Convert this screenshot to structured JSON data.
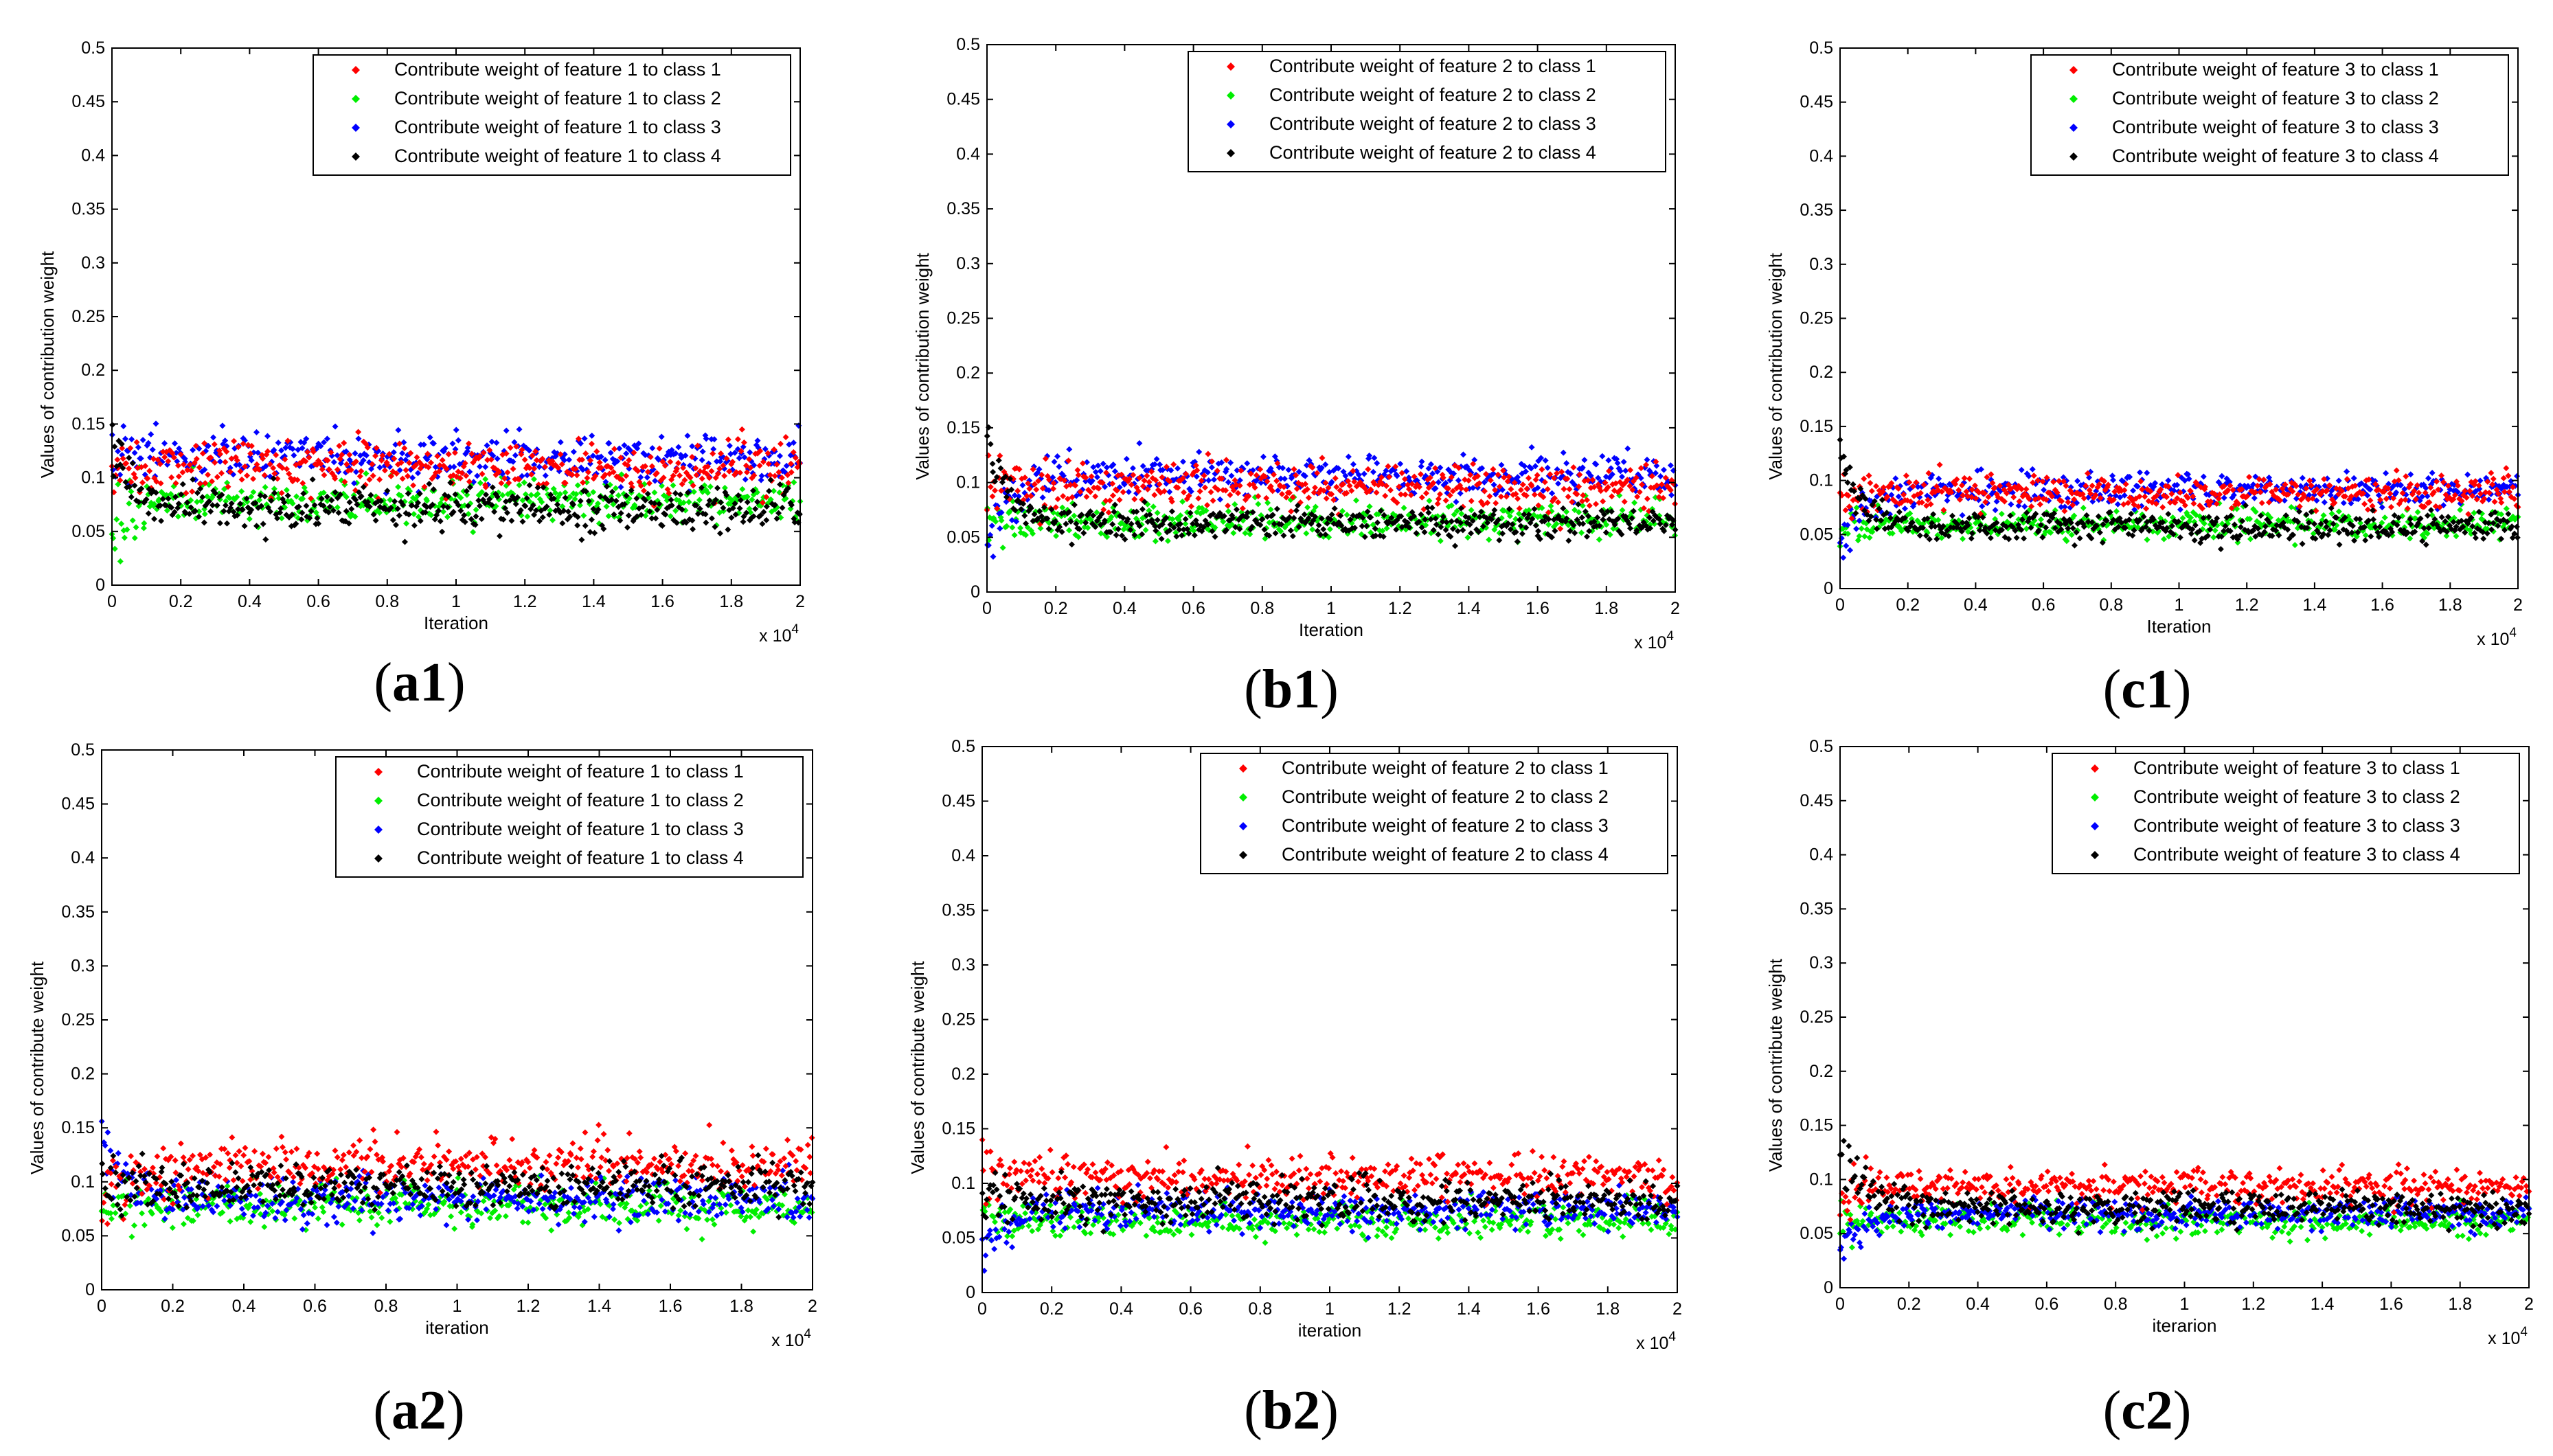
{
  "figure": {
    "panels_label_note": "six subplots arranged 3 columns x 2 rows"
  },
  "colors": {
    "class1": "#ff0000",
    "class2": "#00ee00",
    "class3": "#0000ff",
    "class4": "#000000"
  },
  "chart_data": [
    {
      "id": "a1",
      "type": "scatter",
      "panel_label": "a1",
      "xlabel": "Iteration",
      "ylabel": "Values of contribution weight",
      "x_exponent": "x 10",
      "x_exponent_power": "4",
      "xlim": [
        0,
        2
      ],
      "ylim": [
        0,
        0.5
      ],
      "xticks": [
        "0",
        "0.2",
        "0.4",
        "0.6",
        "0.8",
        "1",
        "1.2",
        "1.4",
        "1.6",
        "1.8",
        "2"
      ],
      "yticks": [
        "0",
        "0.05",
        "0.1",
        "0.15",
        "0.2",
        "0.25",
        "0.3",
        "0.35",
        "0.4",
        "0.45",
        "0.5"
      ],
      "legend_position": "top-right",
      "series": [
        {
          "name": "Contribute weight of feature 1 to class 1",
          "color_key": "class1",
          "start": 0.1,
          "mean": 0.11,
          "spread": 0.012,
          "seed": 11
        },
        {
          "name": "Contribute weight of feature 1 to class 2",
          "color_key": "class2",
          "start": 0.06,
          "mean": 0.078,
          "spread": 0.01,
          "seed": 12
        },
        {
          "name": "Contribute weight of feature 1 to class 3",
          "color_key": "class3",
          "start": 0.12,
          "mean": 0.118,
          "spread": 0.011,
          "seed": 13
        },
        {
          "name": "Contribute weight of feature 1 to class 4",
          "color_key": "class4",
          "start": 0.14,
          "mean": 0.072,
          "spread": 0.01,
          "seed": 14
        }
      ]
    },
    {
      "id": "b1",
      "type": "scatter",
      "panel_label": "b1",
      "xlabel": "Iteration",
      "ylabel": "Values of contribution weight",
      "x_exponent": "x 10",
      "x_exponent_power": "4",
      "xlim": [
        0,
        2
      ],
      "ylim": [
        0,
        0.5
      ],
      "xticks": [
        "0",
        "0.2",
        "0.4",
        "0.6",
        "0.8",
        "1",
        "1.2",
        "1.4",
        "1.6",
        "1.8",
        "2"
      ],
      "yticks": [
        "0",
        "0.05",
        "0.1",
        "0.15",
        "0.2",
        "0.25",
        "0.3",
        "0.35",
        "0.4",
        "0.45",
        "0.5"
      ],
      "legend_position": "top-right",
      "series": [
        {
          "name": "Contribute weight of feature 2 to class 1",
          "color_key": "class1",
          "start": 0.09,
          "mean": 0.097,
          "spread": 0.01,
          "seed": 21
        },
        {
          "name": "Contribute weight of feature 2 to class 2",
          "color_key": "class2",
          "start": 0.06,
          "mean": 0.066,
          "spread": 0.008,
          "seed": 22
        },
        {
          "name": "Contribute weight of feature 2 to class 3",
          "color_key": "class3",
          "start": 0.04,
          "mean": 0.106,
          "spread": 0.009,
          "seed": 23
        },
        {
          "name": "Contribute weight of feature 2 to class 4",
          "color_key": "class4",
          "start": 0.14,
          "mean": 0.063,
          "spread": 0.007,
          "seed": 24
        }
      ]
    },
    {
      "id": "c1",
      "type": "scatter",
      "panel_label": "c1",
      "xlabel": "Iteration",
      "ylabel": "Values of contribution weight",
      "x_exponent": "x 10",
      "x_exponent_power": "4",
      "xlim": [
        0,
        2
      ],
      "ylim": [
        0,
        0.5
      ],
      "xticks": [
        "0",
        "0.2",
        "0.4",
        "0.6",
        "0.8",
        "1",
        "1.2",
        "1.4",
        "1.6",
        "1.8",
        "2"
      ],
      "yticks": [
        "0",
        "0.05",
        "0.1",
        "0.15",
        "0.2",
        "0.25",
        "0.3",
        "0.35",
        "0.4",
        "0.45",
        "0.5"
      ],
      "legend_position": "top-right",
      "series": [
        {
          "name": "Contribute weight of feature 3 to class 1",
          "color_key": "class1",
          "start": 0.08,
          "mean": 0.088,
          "spread": 0.008,
          "seed": 31
        },
        {
          "name": "Contribute weight of feature 3 to class 2",
          "color_key": "class2",
          "start": 0.06,
          "mean": 0.06,
          "spread": 0.007,
          "seed": 32
        },
        {
          "name": "Contribute weight of feature 3 to class 3",
          "color_key": "class3",
          "start": 0.04,
          "mean": 0.092,
          "spread": 0.008,
          "seed": 33
        },
        {
          "name": "Contribute weight of feature 3 to class 4",
          "color_key": "class4",
          "start": 0.13,
          "mean": 0.057,
          "spread": 0.007,
          "seed": 34
        }
      ]
    },
    {
      "id": "a2",
      "type": "scatter",
      "panel_label": "a2",
      "xlabel": "iteration",
      "ylabel": "Values of contribute weight",
      "x_exponent": "x 10",
      "x_exponent_power": "4",
      "xlim": [
        0,
        2
      ],
      "ylim": [
        0,
        0.5
      ],
      "xticks": [
        "0",
        "0.2",
        "0.4",
        "0.6",
        "0.8",
        "1",
        "1.2",
        "1.4",
        "1.6",
        "1.8",
        "2"
      ],
      "yticks": [
        "0",
        "0.05",
        "0.1",
        "0.15",
        "0.2",
        "0.25",
        "0.3",
        "0.35",
        "0.4",
        "0.45",
        "0.5"
      ],
      "legend_position": "top-right",
      "series": [
        {
          "name": "Contribute weight of feature 1 to class 1",
          "color_key": "class1",
          "start": 0.06,
          "mean": 0.116,
          "spread": 0.011,
          "seed": 41
        },
        {
          "name": "Contribute weight of feature 1 to class 2",
          "color_key": "class2",
          "start": 0.08,
          "mean": 0.078,
          "spread": 0.01,
          "seed": 42
        },
        {
          "name": "Contribute weight of feature 1 to class 3",
          "color_key": "class3",
          "start": 0.14,
          "mean": 0.085,
          "spread": 0.01,
          "seed": 43
        },
        {
          "name": "Contribute weight of feature 1 to class 4",
          "color_key": "class4",
          "start": 0.1,
          "mean": 0.096,
          "spread": 0.01,
          "seed": 44
        }
      ]
    },
    {
      "id": "b2",
      "type": "scatter",
      "panel_label": "b2",
      "xlabel": "iteration",
      "ylabel": "Values of contribute weight",
      "x_exponent": "x 10",
      "x_exponent_power": "4",
      "xlim": [
        0,
        2
      ],
      "ylim": [
        0,
        0.5
      ],
      "xticks": [
        "0",
        "0.2",
        "0.4",
        "0.6",
        "0.8",
        "1",
        "1.2",
        "1.4",
        "1.6",
        "1.8",
        "2"
      ],
      "yticks": [
        "0",
        "0.05",
        "0.1",
        "0.15",
        "0.2",
        "0.25",
        "0.3",
        "0.35",
        "0.4",
        "0.45",
        "0.5"
      ],
      "legend_position": "top-right",
      "series": [
        {
          "name": "Contribute weight of feature 2 to class 1",
          "color_key": "class1",
          "start": 0.12,
          "mean": 0.106,
          "spread": 0.01,
          "seed": 51
        },
        {
          "name": "Contribute weight of feature 2 to class 2",
          "color_key": "class2",
          "start": 0.07,
          "mean": 0.066,
          "spread": 0.008,
          "seed": 52
        },
        {
          "name": "Contribute weight of feature 2 to class 3",
          "color_key": "class3",
          "start": 0.03,
          "mean": 0.076,
          "spread": 0.008,
          "seed": 53
        },
        {
          "name": "Contribute weight of feature 2 to class 4",
          "color_key": "class4",
          "start": 0.09,
          "mean": 0.084,
          "spread": 0.009,
          "seed": 54
        }
      ]
    },
    {
      "id": "c2",
      "type": "scatter",
      "panel_label": "c2",
      "xlabel": "iterarion",
      "ylabel": "Values of contribute weight",
      "x_exponent": "x 10",
      "x_exponent_power": "4",
      "xlim": [
        0,
        2
      ],
      "ylim": [
        0,
        0.5
      ],
      "xticks": [
        "0",
        "0.2",
        "0.4",
        "0.6",
        "0.8",
        "1",
        "1.2",
        "1.4",
        "1.6",
        "1.8",
        "2"
      ],
      "yticks": [
        "0",
        "0.05",
        "0.1",
        "0.15",
        "0.2",
        "0.25",
        "0.3",
        "0.35",
        "0.4",
        "0.45",
        "0.5"
      ],
      "legend_position": "top-right",
      "series": [
        {
          "name": "Contribute weight of feature 3 to class 1",
          "color_key": "class1",
          "start": 0.08,
          "mean": 0.094,
          "spread": 0.008,
          "seed": 61
        },
        {
          "name": "Contribute weight of feature 3 to class 2",
          "color_key": "class2",
          "start": 0.06,
          "mean": 0.062,
          "spread": 0.007,
          "seed": 62
        },
        {
          "name": "Contribute weight of feature 3 to class 3",
          "color_key": "class3",
          "start": 0.04,
          "mean": 0.068,
          "spread": 0.007,
          "seed": 63
        },
        {
          "name": "Contribute weight of feature 3 to class 4",
          "color_key": "class4",
          "start": 0.13,
          "mean": 0.074,
          "spread": 0.008,
          "seed": 64
        }
      ]
    }
  ]
}
